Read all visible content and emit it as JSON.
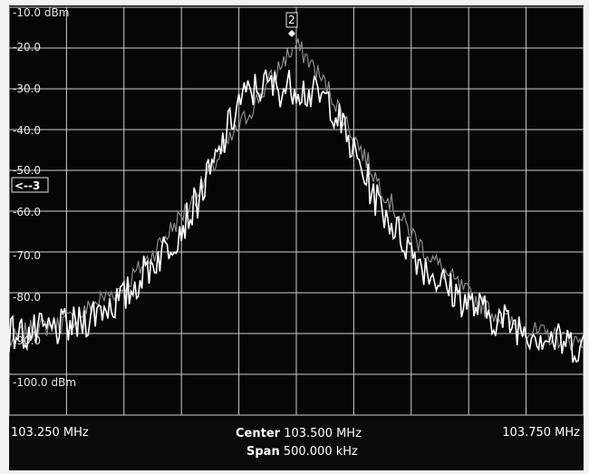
{
  "display": {
    "ref_level_label": "-10.0 dBm",
    "y_labels": [
      "-20.0",
      "-30.0",
      "-40.0",
      "-50.0",
      "-60.0",
      "-70.0",
      "-80.0",
      "-90.0",
      "-100.0 dBm"
    ],
    "trace_marker_label": "<--3",
    "marker_label": "2"
  },
  "status_bar": {
    "start_freq": "103.250 MHz",
    "center_label": "Center",
    "center_value": "103.500 MHz",
    "span_label": "Span",
    "span_value": "500.000 kHz",
    "stop_freq": "103.750 MHz"
  },
  "colors": {
    "screen_bg": "#060606",
    "grid": "#cfcfcf",
    "trace_live": "#ffffff",
    "trace_hold": "#8c8c8c"
  },
  "chart_data": {
    "type": "line",
    "title": "",
    "xlabel": "",
    "ylabel": "",
    "x_unit": "MHz",
    "y_unit": "dBm",
    "xlim": [
      103.25,
      103.75
    ],
    "ylim": [
      -105.0,
      -10.0
    ],
    "series": [
      {
        "name": "",
        "x": [
          103.25,
          103.27,
          103.29,
          103.31,
          103.33,
          103.35,
          103.37,
          103.39,
          103.41,
          103.43,
          103.45,
          103.47,
          103.49,
          103.5,
          103.51,
          103.53,
          103.55,
          103.57,
          103.59,
          103.61,
          103.63,
          103.65,
          103.67,
          103.69,
          103.71,
          103.73,
          103.75
        ],
        "y": [
          -88,
          -85,
          -84,
          -82,
          -78,
          -75,
          -69,
          -62,
          -55,
          -46,
          -38,
          -30,
          -22,
          -19,
          -22,
          -30,
          -40,
          -50,
          -59,
          -66,
          -72,
          -77,
          -81,
          -84,
          -86,
          -87,
          -88
        ]
      },
      {
        "name": "",
        "x": [
          103.25,
          103.27,
          103.29,
          103.31,
          103.33,
          103.35,
          103.37,
          103.39,
          103.41,
          103.43,
          103.45,
          103.47,
          103.49,
          103.5,
          103.51,
          103.53,
          103.55,
          103.57,
          103.59,
          103.61,
          103.63,
          103.65,
          103.67,
          103.69,
          103.71,
          103.73,
          103.75
        ],
        "y": [
          -86,
          -86,
          -85,
          -84,
          -80,
          -78,
          -71,
          -65,
          -57,
          -46,
          -32,
          -28,
          -29,
          -28,
          -30,
          -32,
          -44,
          -55,
          -63,
          -70,
          -75,
          -79,
          -82,
          -84,
          -86,
          -88,
          -89
        ]
      }
    ]
  }
}
